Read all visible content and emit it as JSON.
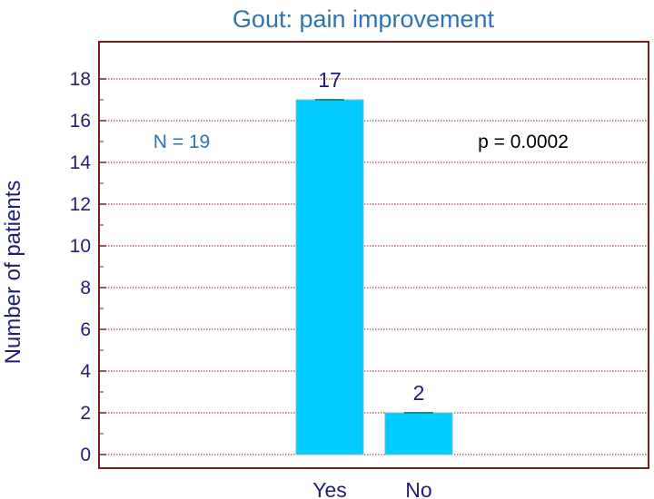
{
  "chart_data": {
    "type": "bar",
    "title": "Gout: pain improvement",
    "xlabel": "",
    "ylabel": "Number of patients",
    "categories": [
      "Yes",
      "No"
    ],
    "values": [
      17,
      2
    ],
    "data_labels": [
      "17",
      "2"
    ],
    "ylim": [
      0,
      19
    ],
    "yticks": [
      0,
      2,
      4,
      6,
      8,
      10,
      12,
      14,
      16,
      18
    ],
    "grid": true,
    "annotations": {
      "n": "N = 19",
      "p": "p = 0.0002"
    },
    "colors": {
      "bar": "#00ccff",
      "bar_edge": "#7fb9d6",
      "bar_cap": "#1a8c8c",
      "frame": "#7b1c1c",
      "grid": "#8b2a2a",
      "title": "#2e74b5",
      "text": "#1f1f7a"
    }
  }
}
